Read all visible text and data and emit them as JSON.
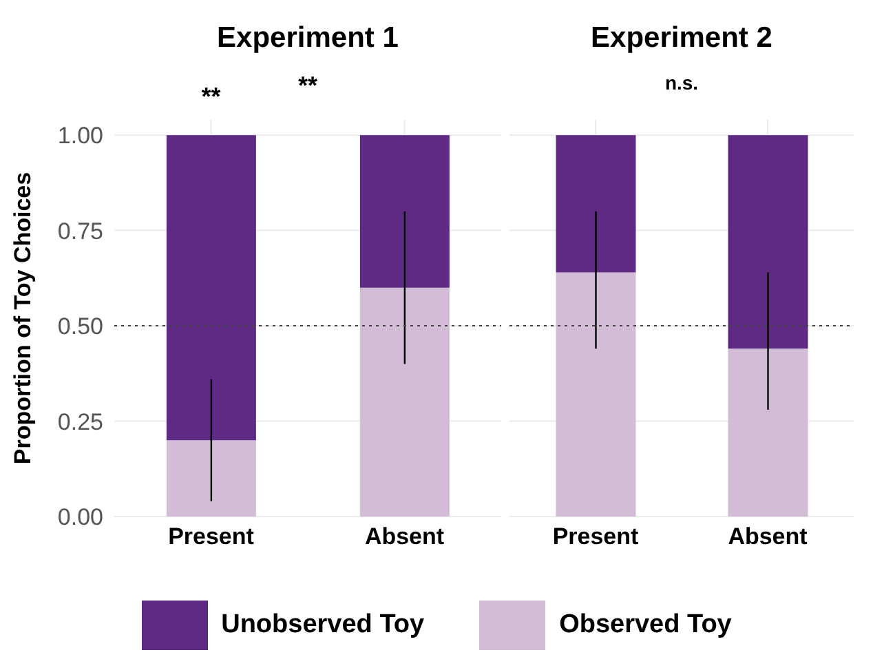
{
  "chart_data": [
    {
      "type": "bar",
      "title": "Experiment 1",
      "ylabel": "Proportion of Toy Choices",
      "categories": [
        "Present",
        "Absent"
      ],
      "stacked": true,
      "series": [
        {
          "name": "Observed Toy",
          "color": "#d2bcd6",
          "values": [
            0.2,
            0.6
          ],
          "errors": [
            [
              0.04,
              0.36
            ],
            [
              0.4,
              0.8
            ]
          ]
        },
        {
          "name": "Unobserved Toy",
          "color": "#5e2a84",
          "values": [
            0.8,
            0.4
          ]
        }
      ],
      "ylim": [
        0,
        1.04
      ],
      "yticks": [
        {
          "value": 0,
          "label": "0.00"
        },
        {
          "value": 0.25,
          "label": "0.25"
        },
        {
          "value": 0.5,
          "label": "0.50"
        },
        {
          "value": 0.75,
          "label": "0.75"
        },
        {
          "value": 1,
          "label": "1.00"
        }
      ],
      "ref_lines": [
        {
          "axis": "y",
          "value": 0.5,
          "line_style": "dotted",
          "color": "#444444"
        }
      ],
      "annotations": [
        "**",
        "**"
      ],
      "grid": true,
      "legend": "bottom"
    },
    {
      "type": "bar",
      "title": "Experiment 2",
      "categories": [
        "Present",
        "Absent"
      ],
      "stacked": true,
      "series": [
        {
          "color": "#d2bcd6",
          "values": [
            0.64,
            0.44
          ],
          "errors": [
            [
              0.44,
              0.8
            ],
            [
              0.28,
              0.64
            ]
          ]
        },
        {
          "color": "#5e2a84",
          "values": [
            0.36,
            0.56
          ]
        }
      ],
      "ylim": [
        0,
        1.04
      ],
      "yticks": [
        {
          "value": 0,
          "label": null
        },
        {
          "value": 0.25,
          "label": null
        },
        {
          "value": 0.5,
          "label": null
        },
        {
          "value": 0.75,
          "label": null
        },
        {
          "value": 1,
          "label": null
        }
      ],
      "ref_lines": [
        {
          "axis": "y",
          "value": 0.5,
          "line_style": "dotted",
          "color": "#444444"
        }
      ],
      "annotations": [
        "n.s."
      ],
      "grid": true,
      "tick_labels": "x"
    }
  ]
}
